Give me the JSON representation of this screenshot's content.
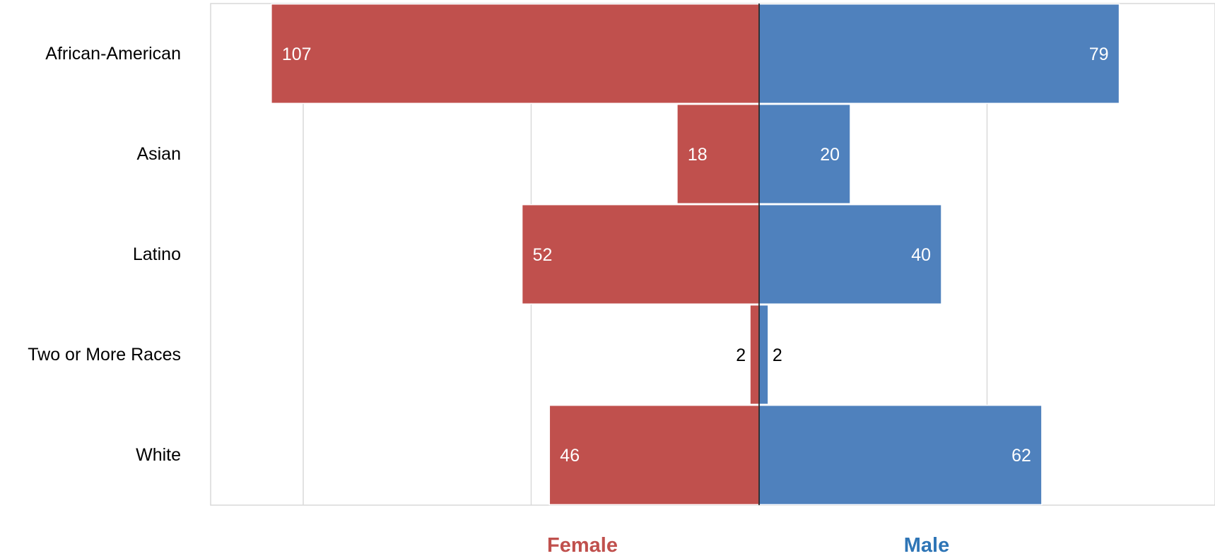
{
  "chart_data": {
    "type": "bar",
    "orientation": "horizontal",
    "layout": "diverging",
    "categories": [
      "African-American",
      "Asian",
      "Latino",
      "Two or More Races",
      "White"
    ],
    "series": [
      {
        "name": "Female",
        "values": [
          107,
          18,
          52,
          2,
          46
        ],
        "color": "#c0504d",
        "side": "left"
      },
      {
        "name": "Male",
        "values": [
          79,
          20,
          40,
          2,
          62
        ],
        "color": "#4f81bd",
        "side": "right"
      }
    ],
    "xlim": [
      -120,
      100
    ],
    "grid": true,
    "legend": "bottom"
  }
}
